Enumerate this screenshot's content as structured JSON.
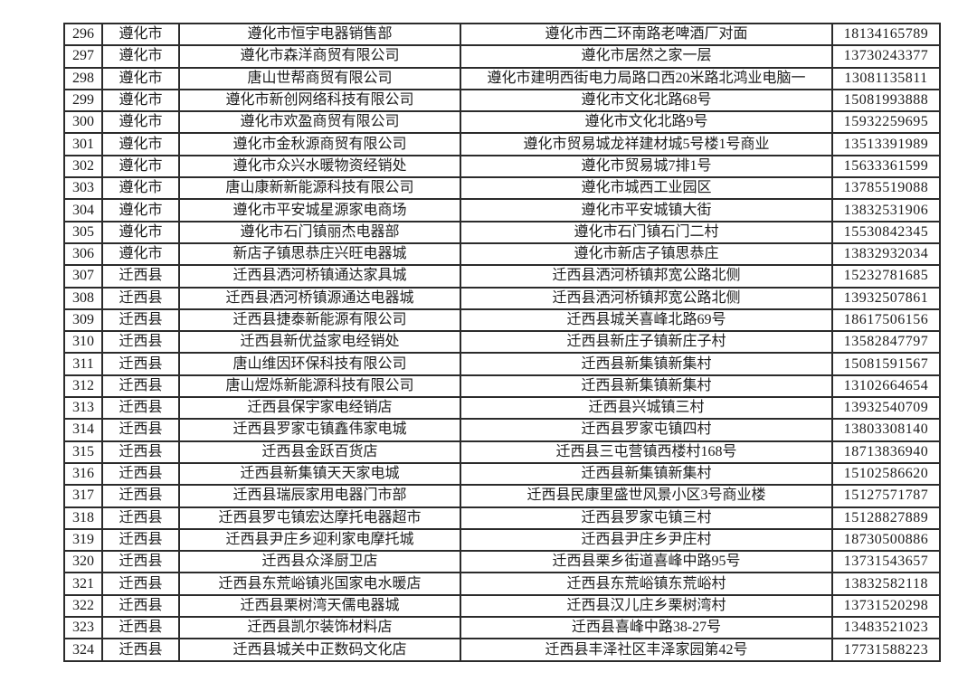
{
  "table": {
    "columns": [
      "no",
      "city",
      "name",
      "address",
      "phone"
    ],
    "rows": [
      {
        "no": "296",
        "city": "遵化市",
        "name": "遵化市恒宇电器销售部",
        "address": "遵化市西二环南路老啤酒厂对面",
        "phone": "18134165789"
      },
      {
        "no": "297",
        "city": "遵化市",
        "name": "遵化市森洋商贸有限公司",
        "address": "遵化市居然之家一层",
        "phone": "13730243377"
      },
      {
        "no": "298",
        "city": "遵化市",
        "name": "唐山世帮商贸有限公司",
        "address": "遵化市建明西街电力局路口西20米路北鸿业电脑一",
        "phone": "13081135811"
      },
      {
        "no": "299",
        "city": "遵化市",
        "name": "遵化市新创网络科技有限公司",
        "address": "遵化市文化北路68号",
        "phone": "15081993888"
      },
      {
        "no": "300",
        "city": "遵化市",
        "name": "遵化市欢盈商贸有限公司",
        "address": "遵化市文化北路9号",
        "phone": "15932259695"
      },
      {
        "no": "301",
        "city": "遵化市",
        "name": "遵化市金秋源商贸有限公司",
        "address": "遵化市贸易城龙祥建材城5号楼1号商业",
        "phone": "13513391989"
      },
      {
        "no": "302",
        "city": "遵化市",
        "name": "遵化市众兴水暖物资经销处",
        "address": "遵化市贸易城7排1号",
        "phone": "15633361599"
      },
      {
        "no": "303",
        "city": "遵化市",
        "name": "唐山康新新能源科技有限公司",
        "address": "遵化市城西工业园区",
        "phone": "13785519088"
      },
      {
        "no": "304",
        "city": "遵化市",
        "name": "遵化市平安城星源家电商场",
        "address": "遵化市平安城镇大街",
        "phone": "13832531906"
      },
      {
        "no": "305",
        "city": "遵化市",
        "name": "遵化市石门镇丽杰电器部",
        "address": "遵化市石门镇石门二村",
        "phone": "15530842345"
      },
      {
        "no": "306",
        "city": "遵化市",
        "name": "新店子镇思恭庄兴旺电器城",
        "address": "遵化市新店子镇思恭庄",
        "phone": "13832932034"
      },
      {
        "no": "307",
        "city": "迁西县",
        "name": "迁西县洒河桥镇通达家具城",
        "address": "迁西县洒河桥镇邦宽公路北侧",
        "phone": "15232781685"
      },
      {
        "no": "308",
        "city": "迁西县",
        "name": "迁西县洒河桥镇源通达电器城",
        "address": "迁西县洒河桥镇邦宽公路北侧",
        "phone": "13932507861"
      },
      {
        "no": "309",
        "city": "迁西县",
        "name": "迁西县捷泰新能源有限公司",
        "address": "迁西县城关喜峰北路69号",
        "phone": "18617506156"
      },
      {
        "no": "310",
        "city": "迁西县",
        "name": "迁西县新优益家电经销处",
        "address": "迁西县新庄子镇新庄子村",
        "phone": "13582847797"
      },
      {
        "no": "311",
        "city": "迁西县",
        "name": "唐山维因环保科技有限公司",
        "address": "迁西县新集镇新集村",
        "phone": "15081591567"
      },
      {
        "no": "312",
        "city": "迁西县",
        "name": "唐山煜烁新能源科技有限公司",
        "address": "迁西县新集镇新集村",
        "phone": "13102664654"
      },
      {
        "no": "313",
        "city": "迁西县",
        "name": "迁西县保宇家电经销店",
        "address": "迁西县兴城镇三村",
        "phone": "13932540709"
      },
      {
        "no": "314",
        "city": "迁西县",
        "name": "迁西县罗家屯镇鑫伟家电城",
        "address": "迁西县罗家屯镇四村",
        "phone": "13803308140"
      },
      {
        "no": "315",
        "city": "迁西县",
        "name": "迁西县金跃百货店",
        "address": "迁西县三屯营镇西楼村168号",
        "phone": "18713836940"
      },
      {
        "no": "316",
        "city": "迁西县",
        "name": "迁西县新集镇天天家电城",
        "address": "迁西县新集镇新集村",
        "phone": "15102586620"
      },
      {
        "no": "317",
        "city": "迁西县",
        "name": "迁西县瑞辰家用电器门市部",
        "address": "迁西县民康里盛世风景小区3号商业楼",
        "phone": "15127571787"
      },
      {
        "no": "318",
        "city": "迁西县",
        "name": "迁西县罗屯镇宏达摩托电器超市",
        "address": "迁西县罗家屯镇三村",
        "phone": "15128827889"
      },
      {
        "no": "319",
        "city": "迁西县",
        "name": "迁西县尹庄乡迎利家电摩托城",
        "address": "迁西县尹庄乡尹庄村",
        "phone": "18730500886"
      },
      {
        "no": "320",
        "city": "迁西县",
        "name": "迁西县众泽厨卫店",
        "address": "迁西县栗乡街道喜峰中路95号",
        "phone": "13731543657"
      },
      {
        "no": "321",
        "city": "迁西县",
        "name": "迁西县东荒峪镇兆国家电水暖店",
        "address": "迁西县东荒峪镇东荒峪村",
        "phone": "13832582118"
      },
      {
        "no": "322",
        "city": "迁西县",
        "name": "迁西县栗树湾天儒电器城",
        "address": "迁西县汉儿庄乡栗树湾村",
        "phone": "13731520298"
      },
      {
        "no": "323",
        "city": "迁西县",
        "name": "迁西县凯尔装饰材料店",
        "address": "迁西县喜峰中路38-27号",
        "phone": "13483521023"
      },
      {
        "no": "324",
        "city": "迁西县",
        "name": "迁西县城关中正数码文化店",
        "address": "迁西县丰泽社区丰泽家园第42号",
        "phone": "17731588223"
      }
    ]
  }
}
